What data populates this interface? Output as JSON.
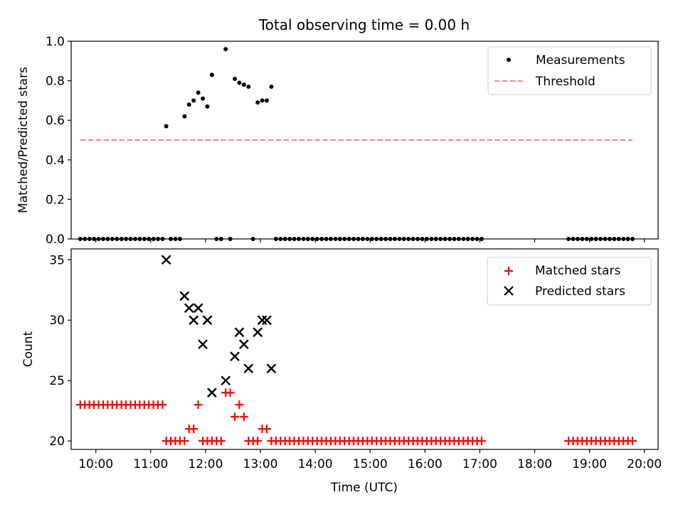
{
  "chart_data": [
    {
      "type": "scatter",
      "title": "Total observing time = 0.00 h",
      "xlabel": "",
      "ylabel": "Matched/Predicted stars",
      "xlim": [
        "09:33",
        "20:15"
      ],
      "ylim": [
        0,
        1.0
      ],
      "yticks": [
        0.0,
        0.2,
        0.4,
        0.6,
        0.8,
        1.0
      ],
      "yticklabels": [
        "0.0",
        "0.2",
        "0.4",
        "0.6",
        "0.8",
        "1.0"
      ],
      "legend": {
        "position": "top-right",
        "entries": [
          "Measurements",
          "Threshold"
        ]
      },
      "series": [
        {
          "name": "Measurements",
          "marker": "dot",
          "color": "#000000",
          "points": [
            [
              "09:43",
              0
            ],
            [
              "09:48",
              0
            ],
            [
              "09:53",
              0
            ],
            [
              "09:58",
              0
            ],
            [
              "10:03",
              0
            ],
            [
              "10:08",
              0
            ],
            [
              "10:13",
              0
            ],
            [
              "10:18",
              0
            ],
            [
              "10:23",
              0
            ],
            [
              "10:28",
              0
            ],
            [
              "10:33",
              0
            ],
            [
              "10:38",
              0
            ],
            [
              "10:43",
              0
            ],
            [
              "10:48",
              0
            ],
            [
              "10:53",
              0
            ],
            [
              "10:58",
              0
            ],
            [
              "11:03",
              0
            ],
            [
              "11:08",
              0
            ],
            [
              "11:13",
              0
            ],
            [
              "11:17",
              0.57
            ],
            [
              "11:22",
              0
            ],
            [
              "11:27",
              0
            ],
            [
              "11:32",
              0
            ],
            [
              "11:37",
              0.62
            ],
            [
              "11:42",
              0.68
            ],
            [
              "11:47",
              0.7
            ],
            [
              "11:52",
              0.74
            ],
            [
              "11:57",
              0.71
            ],
            [
              "12:02",
              0.67
            ],
            [
              "12:07",
              0.83
            ],
            [
              "12:12",
              0
            ],
            [
              "12:17",
              0
            ],
            [
              "12:22",
              0.96
            ],
            [
              "12:27",
              0
            ],
            [
              "12:32",
              0.81
            ],
            [
              "12:37",
              0.79
            ],
            [
              "12:42",
              0.78
            ],
            [
              "12:47",
              0.77
            ],
            [
              "12:52",
              0
            ],
            [
              "12:57",
              0.69
            ],
            [
              "13:02",
              0.7
            ],
            [
              "13:07",
              0.7
            ],
            [
              "13:12",
              0.77
            ],
            [
              "13:17",
              0
            ],
            [
              "13:22",
              0
            ],
            [
              "13:27",
              0
            ],
            [
              "13:32",
              0
            ],
            [
              "13:37",
              0
            ],
            [
              "13:42",
              0
            ],
            [
              "13:47",
              0
            ],
            [
              "13:52",
              0
            ],
            [
              "13:57",
              0
            ],
            [
              "14:02",
              0
            ],
            [
              "14:07",
              0
            ],
            [
              "14:12",
              0
            ],
            [
              "14:17",
              0
            ],
            [
              "14:22",
              0
            ],
            [
              "14:27",
              0
            ],
            [
              "14:32",
              0
            ],
            [
              "14:37",
              0
            ],
            [
              "14:42",
              0
            ],
            [
              "14:47",
              0
            ],
            [
              "14:52",
              0
            ],
            [
              "14:57",
              0
            ],
            [
              "15:02",
              0
            ],
            [
              "15:07",
              0
            ],
            [
              "15:12",
              0
            ],
            [
              "15:17",
              0
            ],
            [
              "15:22",
              0
            ],
            [
              "15:27",
              0
            ],
            [
              "15:32",
              0
            ],
            [
              "15:37",
              0
            ],
            [
              "15:42",
              0
            ],
            [
              "15:47",
              0
            ],
            [
              "15:52",
              0
            ],
            [
              "15:57",
              0
            ],
            [
              "16:02",
              0
            ],
            [
              "16:07",
              0
            ],
            [
              "16:12",
              0
            ],
            [
              "16:17",
              0
            ],
            [
              "16:22",
              0
            ],
            [
              "16:27",
              0
            ],
            [
              "16:32",
              0
            ],
            [
              "16:37",
              0
            ],
            [
              "16:42",
              0
            ],
            [
              "16:47",
              0
            ],
            [
              "16:52",
              0
            ],
            [
              "16:57",
              0
            ],
            [
              "17:02",
              0
            ],
            [
              "18:37",
              0
            ],
            [
              "18:42",
              0
            ],
            [
              "18:47",
              0
            ],
            [
              "18:52",
              0
            ],
            [
              "18:57",
              0
            ],
            [
              "19:02",
              0
            ],
            [
              "19:07",
              0
            ],
            [
              "19:12",
              0
            ],
            [
              "19:17",
              0
            ],
            [
              "19:22",
              0
            ],
            [
              "19:27",
              0
            ],
            [
              "19:32",
              0
            ],
            [
              "19:37",
              0
            ],
            [
              "19:42",
              0
            ],
            [
              "19:47",
              0
            ]
          ]
        },
        {
          "name": "Threshold",
          "marker": "dashed-line",
          "color": "#ff7f7f",
          "points": [
            [
              "09:43",
              0.5
            ],
            [
              "19:47",
              0.5
            ]
          ]
        }
      ]
    },
    {
      "type": "scatter",
      "title": "",
      "xlabel": "Time (UTC)",
      "ylabel": "Count",
      "xlim": [
        "09:33",
        "20:15"
      ],
      "ylim": [
        19.3,
        35.9
      ],
      "yticks": [
        20,
        25,
        30,
        35
      ],
      "yticklabels": [
        "20",
        "25",
        "30",
        "35"
      ],
      "xticks": [
        "10:00",
        "11:00",
        "12:00",
        "13:00",
        "14:00",
        "15:00",
        "16:00",
        "17:00",
        "18:00",
        "19:00",
        "20:00"
      ],
      "legend": {
        "position": "top-right",
        "entries": [
          "Matched stars",
          "Predicted stars"
        ]
      },
      "series": [
        {
          "name": "Matched stars",
          "marker": "plus",
          "color": "#ff0000",
          "points": [
            [
              "09:43",
              23
            ],
            [
              "09:48",
              23
            ],
            [
              "09:53",
              23
            ],
            [
              "09:58",
              23
            ],
            [
              "10:03",
              23
            ],
            [
              "10:08",
              23
            ],
            [
              "10:13",
              23
            ],
            [
              "10:18",
              23
            ],
            [
              "10:23",
              23
            ],
            [
              "10:28",
              23
            ],
            [
              "10:33",
              23
            ],
            [
              "10:38",
              23
            ],
            [
              "10:43",
              23
            ],
            [
              "10:48",
              23
            ],
            [
              "10:53",
              23
            ],
            [
              "10:58",
              23
            ],
            [
              "11:03",
              23
            ],
            [
              "11:08",
              23
            ],
            [
              "11:13",
              23
            ],
            [
              "11:17",
              20
            ],
            [
              "11:22",
              20
            ],
            [
              "11:27",
              20
            ],
            [
              "11:32",
              20
            ],
            [
              "11:37",
              20
            ],
            [
              "11:42",
              21
            ],
            [
              "11:47",
              21
            ],
            [
              "11:52",
              23
            ],
            [
              "11:57",
              20
            ],
            [
              "12:02",
              20
            ],
            [
              "12:07",
              20
            ],
            [
              "12:12",
              20
            ],
            [
              "12:17",
              20
            ],
            [
              "12:22",
              24
            ],
            [
              "12:27",
              24
            ],
            [
              "12:32",
              22
            ],
            [
              "12:37",
              23
            ],
            [
              "12:42",
              22
            ],
            [
              "12:47",
              20
            ],
            [
              "12:52",
              20
            ],
            [
              "12:57",
              20
            ],
            [
              "13:02",
              21
            ],
            [
              "13:07",
              21
            ],
            [
              "13:12",
              20
            ],
            [
              "13:17",
              20
            ],
            [
              "13:22",
              20
            ],
            [
              "13:27",
              20
            ],
            [
              "13:32",
              20
            ],
            [
              "13:37",
              20
            ],
            [
              "13:42",
              20
            ],
            [
              "13:47",
              20
            ],
            [
              "13:52",
              20
            ],
            [
              "13:57",
              20
            ],
            [
              "14:02",
              20
            ],
            [
              "14:07",
              20
            ],
            [
              "14:12",
              20
            ],
            [
              "14:17",
              20
            ],
            [
              "14:22",
              20
            ],
            [
              "14:27",
              20
            ],
            [
              "14:32",
              20
            ],
            [
              "14:37",
              20
            ],
            [
              "14:42",
              20
            ],
            [
              "14:47",
              20
            ],
            [
              "14:52",
              20
            ],
            [
              "14:57",
              20
            ],
            [
              "15:02",
              20
            ],
            [
              "15:07",
              20
            ],
            [
              "15:12",
              20
            ],
            [
              "15:17",
              20
            ],
            [
              "15:22",
              20
            ],
            [
              "15:27",
              20
            ],
            [
              "15:32",
              20
            ],
            [
              "15:37",
              20
            ],
            [
              "15:42",
              20
            ],
            [
              "15:47",
              20
            ],
            [
              "15:52",
              20
            ],
            [
              "15:57",
              20
            ],
            [
              "16:02",
              20
            ],
            [
              "16:07",
              20
            ],
            [
              "16:12",
              20
            ],
            [
              "16:17",
              20
            ],
            [
              "16:22",
              20
            ],
            [
              "16:27",
              20
            ],
            [
              "16:32",
              20
            ],
            [
              "16:37",
              20
            ],
            [
              "16:42",
              20
            ],
            [
              "16:47",
              20
            ],
            [
              "16:52",
              20
            ],
            [
              "16:57",
              20
            ],
            [
              "17:02",
              20
            ],
            [
              "18:37",
              20
            ],
            [
              "18:42",
              20
            ],
            [
              "18:47",
              20
            ],
            [
              "18:52",
              20
            ],
            [
              "18:57",
              20
            ],
            [
              "19:02",
              20
            ],
            [
              "19:07",
              20
            ],
            [
              "19:12",
              20
            ],
            [
              "19:17",
              20
            ],
            [
              "19:22",
              20
            ],
            [
              "19:27",
              20
            ],
            [
              "19:32",
              20
            ],
            [
              "19:37",
              20
            ],
            [
              "19:42",
              20
            ],
            [
              "19:47",
              20
            ]
          ]
        },
        {
          "name": "Predicted stars",
          "marker": "x",
          "color": "#000000",
          "points": [
            [
              "11:17",
              35
            ],
            [
              "11:37",
              32
            ],
            [
              "11:42",
              31
            ],
            [
              "11:47",
              30
            ],
            [
              "11:52",
              31
            ],
            [
              "11:57",
              28
            ],
            [
              "12:02",
              30
            ],
            [
              "12:07",
              24
            ],
            [
              "12:22",
              25
            ],
            [
              "12:32",
              27
            ],
            [
              "12:37",
              29
            ],
            [
              "12:42",
              28
            ],
            [
              "12:47",
              26
            ],
            [
              "12:57",
              29
            ],
            [
              "13:02",
              30
            ],
            [
              "13:07",
              30
            ],
            [
              "13:12",
              26
            ]
          ]
        }
      ]
    }
  ]
}
